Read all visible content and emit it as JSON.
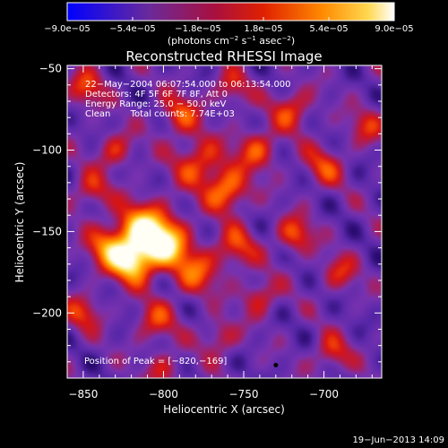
{
  "chart_data": {
    "type": "heatmap",
    "title": "Reconstructed RHESSI Image",
    "xlabel": "Heliocentric X (arcsec)",
    "ylabel": "Heliocentric Y (arcsec)",
    "xlim": [
      -860,
      -664
    ],
    "ylim": [
      -240,
      -48
    ],
    "x_ticks": [
      -850,
      -800,
      -750,
      -700
    ],
    "x_tick_labels": [
      "−850",
      "−800",
      "−750",
      "−700"
    ],
    "y_ticks": [
      -50,
      -100,
      -150,
      -200
    ],
    "y_tick_labels": [
      "−50",
      "−100",
      "−150",
      "−200"
    ],
    "colorbar": {
      "min": -9e-05,
      "max": 9e-05,
      "ticks": [
        -9e-05,
        -5.4e-05,
        -1.8e-05,
        1.8e-05,
        5.4e-05,
        9e-05
      ],
      "tick_labels": [
        "−9.0e−05",
        "−5.4e−05",
        "−1.8e−05",
        "1.8e−05",
        "5.4e−05",
        "9.0e−05"
      ],
      "units_prefix": "(photons cm",
      "units_exp1": "−2",
      "units_mid": " s",
      "units_exp2": "−1",
      "units_mid2": " asec",
      "units_exp3": "−2",
      "units_suffix": ")"
    },
    "annotations": [
      "22−May−2004 06:07:54.000 to 06:13:54.000",
      "Detectors: 4F 5F 6F 7F 8F, Att 0",
      "Energy Range: 25.0 − 50.0 keV",
      "Clean       Total counts: 7.74E+03"
    ],
    "peak_label": "Position of Peak = [−820,−169]",
    "peak": [
      -820,
      -169
    ],
    "sources": [
      {
        "x": -812,
        "y": -150,
        "amp": 1.0,
        "s": 12
      },
      {
        "x": -820,
        "y": -169,
        "amp": 0.9,
        "s": 9
      },
      {
        "x": -798,
        "y": -158,
        "amp": 0.75,
        "s": 10
      },
      {
        "x": -835,
        "y": -160,
        "amp": 0.6,
        "s": 9
      },
      {
        "x": -780,
        "y": -175,
        "amp": 0.55,
        "s": 10
      },
      {
        "x": -760,
        "y": -125,
        "amp": 0.7,
        "s": 9
      },
      {
        "x": -778,
        "y": -108,
        "amp": 0.55,
        "s": 11
      },
      {
        "x": -742,
        "y": -100,
        "amp": 0.55,
        "s": 9
      },
      {
        "x": -790,
        "y": -78,
        "amp": 0.5,
        "s": 9
      },
      {
        "x": -830,
        "y": -100,
        "amp": 0.45,
        "s": 8
      },
      {
        "x": -845,
        "y": -125,
        "amp": 0.45,
        "s": 8
      },
      {
        "x": -755,
        "y": -160,
        "amp": 0.5,
        "s": 9
      },
      {
        "x": -740,
        "y": -190,
        "amp": 0.45,
        "s": 8
      },
      {
        "x": -718,
        "y": -152,
        "amp": 0.55,
        "s": 8
      },
      {
        "x": -700,
        "y": -110,
        "amp": 0.45,
        "s": 9
      },
      {
        "x": -720,
        "y": -75,
        "amp": 0.5,
        "s": 9
      },
      {
        "x": -758,
        "y": -62,
        "amp": 0.4,
        "s": 8
      },
      {
        "x": -848,
        "y": -62,
        "amp": 0.5,
        "s": 8
      },
      {
        "x": -850,
        "y": -200,
        "amp": 0.45,
        "s": 8
      },
      {
        "x": -805,
        "y": -205,
        "amp": 0.45,
        "s": 9
      },
      {
        "x": -765,
        "y": -215,
        "amp": 0.4,
        "s": 8
      },
      {
        "x": -695,
        "y": -225,
        "amp": 0.45,
        "s": 8
      },
      {
        "x": -690,
        "y": -175,
        "amp": 0.4,
        "s": 8
      },
      {
        "x": -673,
        "y": -85,
        "amp": 0.4,
        "s": 8
      },
      {
        "x": -800,
        "y": -235,
        "amp": 0.35,
        "s": 8
      }
    ]
  },
  "footer": {
    "timestamp": "19−Jun−2013 14:09"
  },
  "colors": {
    "background": "#000000",
    "colormap": [
      "#000000",
      "#3a0a8a",
      "#7a2aa8",
      "#c81e4a",
      "#ff4a00",
      "#ff9a00",
      "#ffe060",
      "#ffffff"
    ]
  }
}
